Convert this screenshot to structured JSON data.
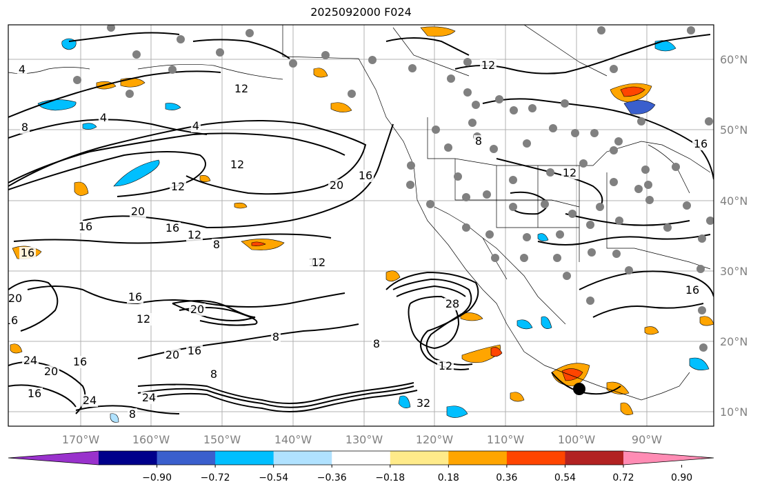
{
  "title": "2025092000 F024",
  "lat_labels": [
    "60°N",
    "50°N",
    "40°N",
    "30°N",
    "20°N",
    "10°N"
  ],
  "lon_labels": [
    "170°W",
    "160°W",
    "150°W",
    "140°W",
    "130°W",
    "120°W",
    "110°W",
    "100°W",
    "90°W"
  ],
  "colorbar": {
    "ticks": [
      "−0.90",
      "−0.72",
      "−0.54",
      "−0.36",
      "−0.18",
      "0.18",
      "0.36",
      "0.54",
      "0.72",
      "0.90"
    ],
    "colors": [
      "#9932cc",
      "#00008b",
      "#3a5fcd",
      "#00bfff",
      "#b0e2ff",
      "#ffffff",
      "#ffeb8a",
      "#ffa500",
      "#ff4500",
      "#b22222",
      "#ff8cb4"
    ]
  },
  "contour_labels": [
    "4",
    "4",
    "4",
    "8",
    "12",
    "16",
    "20",
    "12",
    "16",
    "20",
    "12",
    "8",
    "16",
    "12",
    "16",
    "12",
    "8",
    "12",
    "16",
    "20",
    "28",
    "12",
    "8",
    "16",
    "20",
    "12",
    "8",
    "16",
    "24",
    "20",
    "24",
    "16",
    "24",
    "8",
    "12",
    "16",
    "20",
    "16",
    "32",
    "8",
    "12",
    "16"
  ]
}
